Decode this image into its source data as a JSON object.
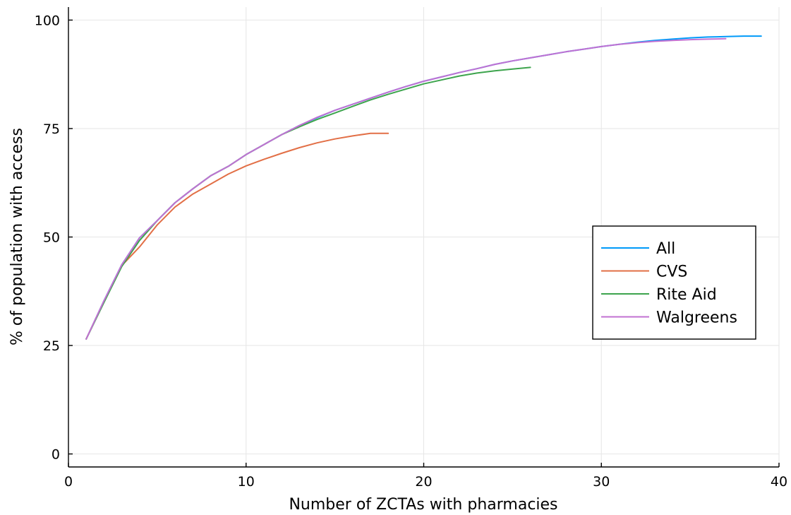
{
  "chart_data": {
    "type": "line",
    "title": "",
    "xlabel": "Number of ZCTAs with pharmacies",
    "ylabel": "% of population with access",
    "xlim": [
      0,
      40
    ],
    "ylim": [
      -3,
      103
    ],
    "xticks": [
      0,
      10,
      20,
      30,
      40
    ],
    "yticks": [
      0,
      25,
      50,
      75,
      100
    ],
    "grid": true,
    "legend_position": "right",
    "series": [
      {
        "name": "All",
        "color": "#009af9",
        "x": [
          1,
          2,
          3,
          4,
          5,
          6,
          7,
          8,
          9,
          10,
          11,
          12,
          13,
          14,
          15,
          16,
          17,
          18,
          19,
          20,
          21,
          22,
          23,
          24,
          25,
          26,
          27,
          28,
          29,
          30,
          31,
          32,
          33,
          34,
          35,
          36,
          37,
          38,
          39
        ],
        "y": [
          26.5,
          35.3,
          43.6,
          49.8,
          53.8,
          57.9,
          61.1,
          64.1,
          66.3,
          69.0,
          71.3,
          73.6,
          75.7,
          77.5,
          79.2,
          80.6,
          82.0,
          83.4,
          84.7,
          85.9,
          86.9,
          87.9,
          88.8,
          89.8,
          90.6,
          91.3,
          92.0,
          92.7,
          93.3,
          93.9,
          94.4,
          94.9,
          95.3,
          95.6,
          95.9,
          96.1,
          96.2,
          96.3,
          96.3
        ]
      },
      {
        "name": "CVS",
        "color": "#e26f46",
        "x": [
          1,
          2,
          3,
          4,
          5,
          6,
          7,
          8,
          9,
          10,
          11,
          12,
          13,
          14,
          15,
          16,
          17,
          18
        ],
        "y": [
          26.5,
          35.2,
          43.4,
          47.7,
          52.8,
          56.9,
          59.9,
          62.2,
          64.5,
          66.4,
          67.9,
          69.3,
          70.6,
          71.7,
          72.6,
          73.3,
          73.9,
          73.9
        ]
      },
      {
        "name": "Rite Aid",
        "color": "#3da44d",
        "x": [
          1,
          2,
          3,
          4,
          5,
          6,
          7,
          8,
          9,
          10,
          11,
          12,
          13,
          14,
          15,
          16,
          17,
          18,
          19,
          20,
          21,
          22,
          23,
          24,
          25,
          26
        ],
        "y": [
          26.5,
          34.9,
          43.2,
          49.2,
          53.8,
          57.9,
          61.1,
          64.1,
          66.3,
          69.0,
          71.3,
          73.6,
          75.4,
          77.1,
          78.6,
          80.1,
          81.6,
          82.9,
          84.1,
          85.3,
          86.2,
          87.1,
          87.8,
          88.3,
          88.7,
          89.1
        ]
      },
      {
        "name": "Walgreens",
        "color": "#c271d2",
        "x": [
          1,
          2,
          3,
          4,
          5,
          6,
          7,
          8,
          9,
          10,
          11,
          12,
          13,
          14,
          15,
          16,
          17,
          18,
          19,
          20,
          21,
          22,
          23,
          24,
          25,
          26,
          27,
          28,
          29,
          30,
          31,
          32,
          33,
          34,
          35,
          36,
          37
        ],
        "y": [
          26.5,
          35.3,
          43.6,
          49.8,
          53.8,
          57.9,
          61.1,
          64.1,
          66.3,
          69.0,
          71.3,
          73.6,
          75.7,
          77.6,
          79.2,
          80.6,
          82.0,
          83.4,
          84.7,
          85.9,
          86.9,
          87.9,
          88.8,
          89.8,
          90.6,
          91.3,
          92.0,
          92.7,
          93.3,
          93.9,
          94.4,
          94.8,
          95.1,
          95.3,
          95.5,
          95.6,
          95.7
        ]
      }
    ]
  }
}
